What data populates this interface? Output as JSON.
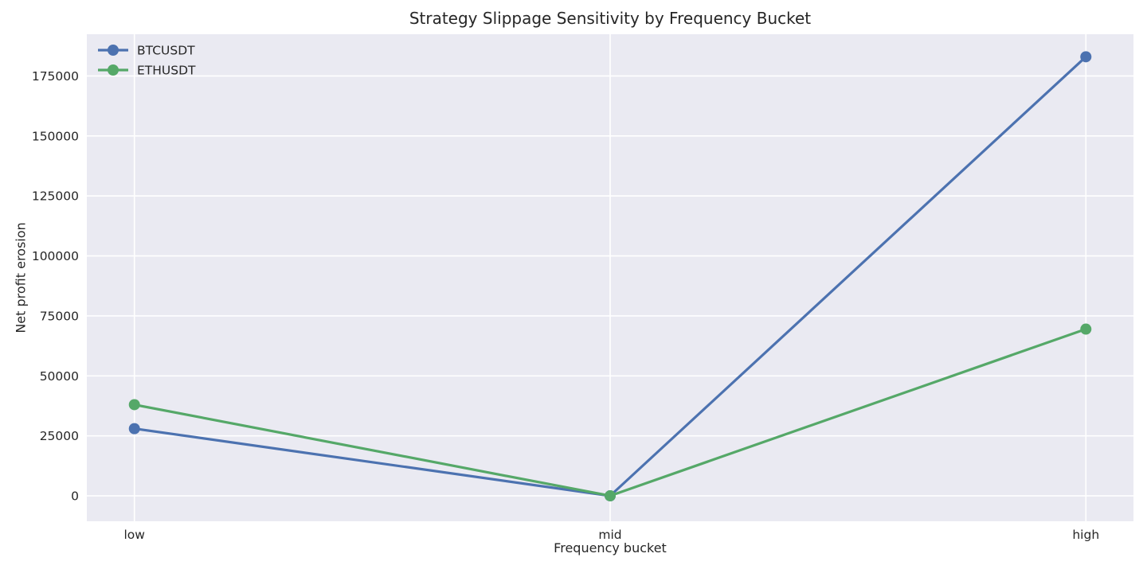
{
  "chart_data": {
    "type": "line",
    "title": "Strategy Slippage Sensitivity by Frequency Bucket",
    "xlabel": "Frequency bucket",
    "ylabel": "Net profit erosion",
    "categories": [
      "low",
      "mid",
      "high"
    ],
    "x": [
      0,
      1,
      2
    ],
    "series": [
      {
        "name": "BTCUSDT",
        "color": "#4C72B0",
        "values": [
          28000,
          0,
          183000
        ]
      },
      {
        "name": "ETHUSDT",
        "color": "#55A868",
        "values": [
          38000,
          0,
          69500
        ]
      }
    ],
    "yticks": [
      0,
      25000,
      50000,
      75000,
      100000,
      125000,
      150000,
      175000
    ],
    "ylim": [
      -10600,
      192400
    ],
    "xlim": [
      -0.1,
      2.1
    ],
    "grid": true,
    "legend_position": "upper-left",
    "styles": {
      "plot_background": "#EAEAF2",
      "grid_color": "#FFFFFF",
      "text_color": "#262626",
      "figure_background": "#FFFFFF"
    }
  }
}
